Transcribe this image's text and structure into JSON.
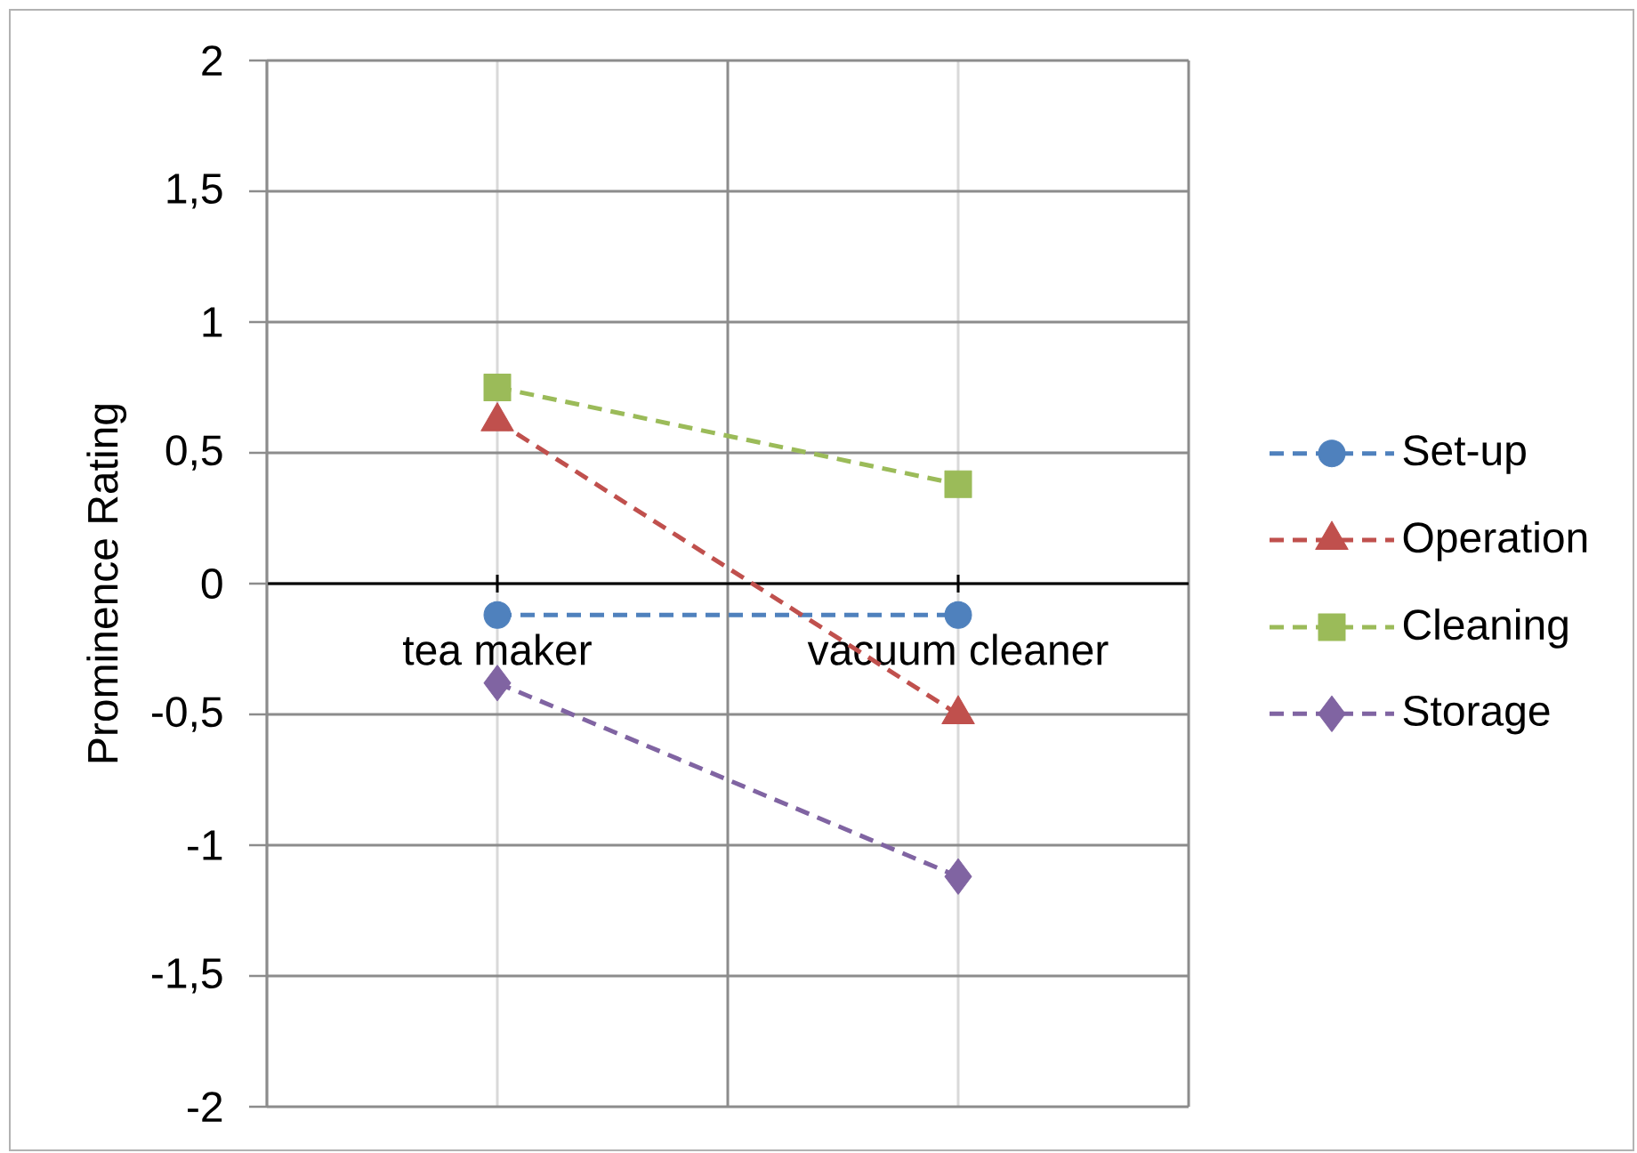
{
  "chart_data": {
    "type": "line",
    "ylabel": "Prominence Rating",
    "categories": [
      "tea maker",
      "vacuum cleaner"
    ],
    "series": [
      {
        "name": "Set-up",
        "color": "#4f81bd",
        "marker": "circle",
        "values": [
          -0.12,
          -0.12
        ]
      },
      {
        "name": "Operation",
        "color": "#c0504d",
        "marker": "triangle",
        "values": [
          0.62,
          -0.5
        ]
      },
      {
        "name": "Cleaning",
        "color": "#9bbb59",
        "marker": "square",
        "values": [
          0.75,
          0.38
        ]
      },
      {
        "name": "Storage",
        "color": "#8064a2",
        "marker": "diamond",
        "values": [
          -0.38,
          -1.12
        ]
      }
    ],
    "ylim": [
      -2,
      2
    ],
    "yticks": [
      -2,
      {
        "value": -1.5,
        "label": "-1,5"
      },
      -1,
      {
        "value": -0.5,
        "label": "-0,5"
      },
      0,
      {
        "value": 0.5,
        "label": "0,5"
      },
      1,
      {
        "value": 1.5,
        "label": "1,5"
      },
      2
    ],
    "grid": true,
    "legend": "right",
    "line_style": "dashed"
  }
}
